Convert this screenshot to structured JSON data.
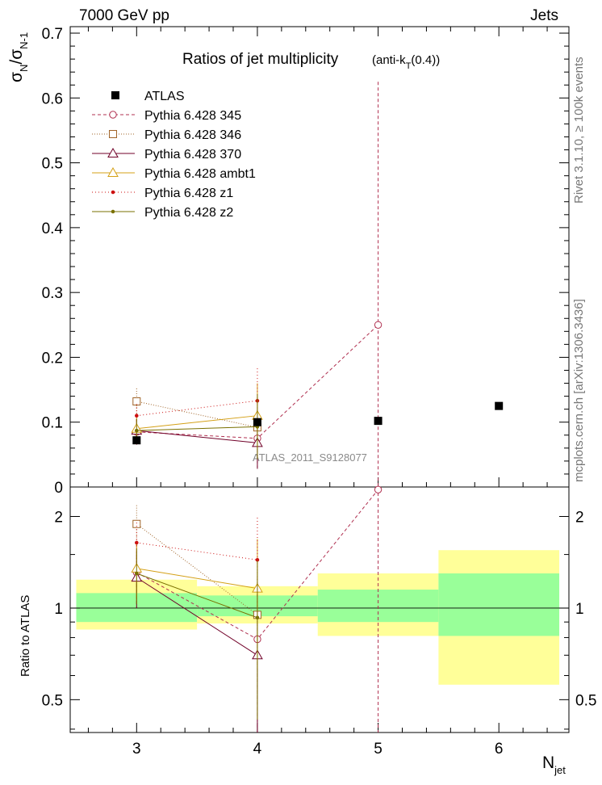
{
  "header": {
    "left": "7000 GeV pp",
    "right": "Jets",
    "title": "Ratios of jet multiplicity",
    "title_note_prefix": "(anti-k",
    "title_note_sub": "T",
    "title_note_suffix": "(0.4))",
    "side_top": "Rivet 3.1.10, ≥ 100k events",
    "side_bottom": "mcplots.cern.ch [arXiv:1306.3436]",
    "watermark": "ATLAS_2011_S9128077"
  },
  "chart_data": {
    "type": "scatter",
    "x": [
      3,
      4,
      5,
      6
    ],
    "xlabel": "N",
    "xlabel_sub": "jet",
    "xlim": [
      2.45,
      6.58
    ],
    "x_ticks": [
      "3",
      "4",
      "5",
      "6"
    ],
    "main": {
      "ylabel_main": "σ",
      "ylabel_sub1": "N",
      "ylabel_mid": "/σ",
      "ylabel_sub2": "N-1",
      "ylim": [
        0,
        0.71
      ],
      "y_ticks": [
        "0",
        "0.1",
        "0.2",
        "0.3",
        "0.4",
        "0.5",
        "0.6",
        "0.7"
      ],
      "legend_position": "top-left",
      "data": {
        "name": "ATLAS",
        "color": "#000000",
        "x": [
          3,
          4,
          5,
          6
        ],
        "y": [
          0.072,
          0.1,
          0.102,
          0.125
        ]
      },
      "series": [
        {
          "name": "Pythia 6.428 345",
          "color": "#b03050",
          "marker": "circle",
          "dash": "4,3",
          "x": [
            3,
            4,
            5
          ],
          "y": [
            0.085,
            0.075,
            0.25
          ],
          "yerr": [
            0.02,
            0.045,
            0.375
          ]
        },
        {
          "name": "Pythia 6.428 346",
          "color": "#a06428",
          "marker": "square",
          "dash": "1,2",
          "x": [
            3,
            4
          ],
          "y": [
            0.132,
            0.092
          ],
          "yerr": [
            0.02,
            0.045
          ]
        },
        {
          "name": "Pythia 6.428 370",
          "color": "#700028",
          "marker": "triangle",
          "dash": "",
          "x": [
            3,
            4
          ],
          "y": [
            0.087,
            0.068
          ],
          "yerr": [
            0.018,
            0.04
          ]
        },
        {
          "name": "Pythia 6.428 ambt1",
          "color": "#d4a017",
          "marker": "triangle",
          "dash": "",
          "x": [
            3,
            4
          ],
          "y": [
            0.09,
            0.11
          ],
          "yerr": [
            0.018,
            0.05
          ]
        },
        {
          "name": "Pythia 6.428 z1",
          "color": "#cc1010",
          "marker": "dot",
          "dash": "1,3",
          "x": [
            3,
            4
          ],
          "y": [
            0.11,
            0.133
          ],
          "yerr": [
            0.018,
            0.05
          ]
        },
        {
          "name": "Pythia 6.428 z2",
          "color": "#7a7000",
          "marker": "dot",
          "dash": "",
          "x": [
            3,
            4
          ],
          "y": [
            0.087,
            0.093
          ],
          "yerr": [
            0.018,
            0.05
          ]
        }
      ]
    },
    "ratio": {
      "ylabel": "Ratio to ATLAS",
      "ylim": [
        0.39,
        2.5
      ],
      "log": true,
      "y_ticks": [
        "0.5",
        "1",
        "2"
      ],
      "bands": [
        {
          "x": [
            2.5,
            3.5
          ],
          "stat": [
            0.9,
            1.12
          ],
          "total": [
            0.85,
            1.24
          ]
        },
        {
          "x": [
            3.5,
            4.5
          ],
          "stat": [
            0.94,
            1.1
          ],
          "total": [
            0.89,
            1.18
          ]
        },
        {
          "x": [
            4.5,
            5.5
          ],
          "stat": [
            0.9,
            1.15
          ],
          "total": [
            0.81,
            1.3
          ]
        },
        {
          "x": [
            5.5,
            6.5
          ],
          "stat": [
            0.81,
            1.3
          ],
          "total": [
            0.56,
            1.55
          ]
        }
      ],
      "series": [
        {
          "name": "Pythia 6.428 345",
          "x": [
            3,
            4,
            5
          ],
          "y": [
            1.31,
            0.79,
            2.45
          ]
        },
        {
          "name": "Pythia 6.428 346",
          "x": [
            3,
            4
          ],
          "y": [
            1.89,
            0.95
          ]
        },
        {
          "name": "Pythia 6.428 370",
          "x": [
            3,
            4
          ],
          "y": [
            1.26,
            0.7
          ]
        },
        {
          "name": "Pythia 6.428 ambt1",
          "x": [
            3,
            4
          ],
          "y": [
            1.35,
            1.16
          ]
        },
        {
          "name": "Pythia 6.428 z1",
          "x": [
            3,
            4
          ],
          "y": [
            1.64,
            1.44
          ]
        },
        {
          "name": "Pythia 6.428 z2",
          "x": [
            3,
            4
          ],
          "y": [
            1.3,
            0.93
          ]
        }
      ]
    }
  }
}
